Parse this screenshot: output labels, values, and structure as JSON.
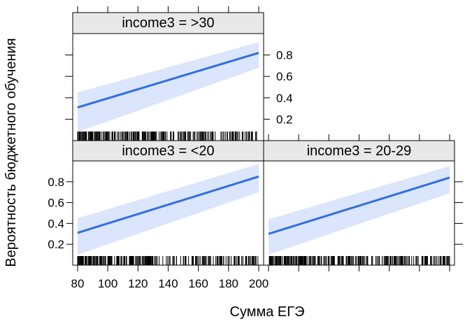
{
  "chart_data": {
    "type": "line",
    "xlabel": "Сумма ЕГЭ",
    "ylabel": "Вероятность бюджетного обучения",
    "xlim": [
      80,
      200
    ],
    "ylim": [
      0,
      1
    ],
    "x_ticks": [
      80,
      100,
      120,
      140,
      160,
      180,
      200
    ],
    "y_ticks": [
      0.2,
      0.4,
      0.6,
      0.8
    ],
    "panels": [
      {
        "strip": "income3 = >30",
        "line": {
          "x": [
            80,
            200
          ],
          "y": [
            0.31,
            0.82
          ]
        },
        "band_lower": {
          "x": [
            80,
            200
          ],
          "y": [
            0.08,
            0.68
          ]
        },
        "band_upper": {
          "x": [
            80,
            200
          ],
          "y": [
            0.45,
            0.92
          ]
        }
      },
      {
        "strip": "income3 = <20",
        "line": {
          "x": [
            80,
            200
          ],
          "y": [
            0.31,
            0.85
          ]
        },
        "band_lower": {
          "x": [
            80,
            200
          ],
          "y": [
            0.1,
            0.7
          ]
        },
        "band_upper": {
          "x": [
            80,
            200
          ],
          "y": [
            0.45,
            0.97
          ]
        }
      },
      {
        "strip": "income3 = 20-29",
        "line": {
          "x": [
            80,
            200
          ],
          "y": [
            0.3,
            0.84
          ]
        },
        "band_lower": {
          "x": [
            80,
            200
          ],
          "y": [
            0.1,
            0.69
          ]
        },
        "band_upper": {
          "x": [
            80,
            200
          ],
          "y": [
            0.44,
            0.95
          ]
        }
      }
    ],
    "colors": {
      "line": "#2f6fe0",
      "band": "#dbe5fb",
      "strip": "#e8e8e8"
    },
    "rug": true
  }
}
